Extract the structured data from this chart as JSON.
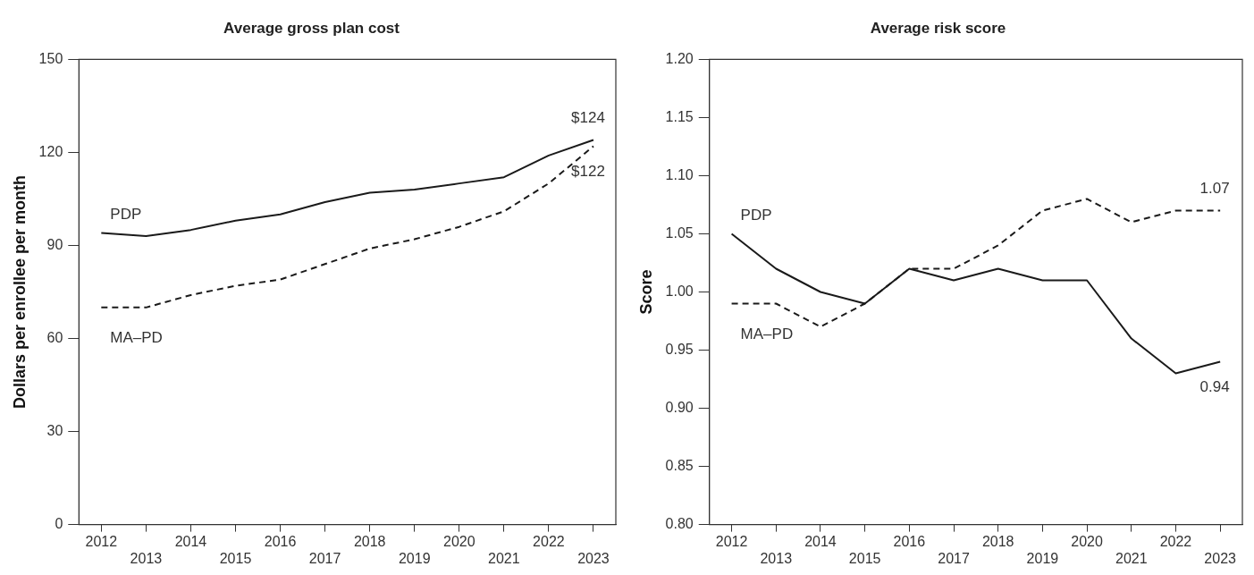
{
  "chart_data": [
    {
      "type": "line",
      "title": "Average gross plan cost",
      "ylabel": "Dollars per enrollee per month",
      "categories": [
        "2012",
        "2013",
        "2014",
        "2015",
        "2016",
        "2017",
        "2018",
        "2019",
        "2020",
        "2021",
        "2022",
        "2023"
      ],
      "series": [
        {
          "name": "PDP",
          "color": "#1a1a1a",
          "line_style": "solid",
          "values": [
            94,
            93,
            95,
            98,
            100,
            104,
            107,
            108,
            110,
            112,
            119,
            124
          ],
          "value_labels": [
            null,
            null,
            null,
            null,
            null,
            null,
            null,
            null,
            null,
            null,
            null,
            "$124"
          ]
        },
        {
          "name": "MA–PD",
          "color": "#1a1a1a",
          "line_style": "dashed",
          "values": [
            70,
            70,
            74,
            77,
            79,
            84,
            89,
            92,
            96,
            101,
            110,
            122
          ],
          "value_labels": [
            null,
            null,
            null,
            null,
            null,
            null,
            null,
            null,
            null,
            null,
            null,
            "$122"
          ]
        }
      ],
      "ylim": [
        0,
        150
      ],
      "yticks": [
        0,
        30,
        60,
        90,
        120,
        150
      ],
      "grid": false,
      "legend": false,
      "marker": "none"
    },
    {
      "type": "line",
      "title": "Average risk score",
      "ylabel": "Score",
      "categories": [
        "2012",
        "2013",
        "2014",
        "2015",
        "2016",
        "2017",
        "2018",
        "2019",
        "2020",
        "2021",
        "2022",
        "2023"
      ],
      "series": [
        {
          "name": "PDP",
          "color": "#1a1a1a",
          "line_style": "solid",
          "values": [
            1.05,
            1.02,
            1.0,
            0.99,
            1.02,
            1.01,
            1.02,
            1.01,
            1.01,
            0.96,
            0.93,
            0.94
          ],
          "value_labels": [
            null,
            null,
            null,
            null,
            null,
            null,
            null,
            null,
            null,
            null,
            null,
            "0.94"
          ]
        },
        {
          "name": "MA–PD",
          "color": "#1a1a1a",
          "line_style": "dashed",
          "values": [
            0.99,
            0.99,
            0.97,
            0.99,
            1.02,
            1.02,
            1.04,
            1.07,
            1.08,
            1.06,
            1.07,
            1.07
          ],
          "value_labels": [
            null,
            null,
            null,
            null,
            null,
            null,
            null,
            null,
            null,
            null,
            null,
            "1.07"
          ]
        }
      ],
      "ylim": [
        0.8,
        1.2
      ],
      "yticks": [
        {
          "value": 0.8,
          "label": "0.80"
        },
        {
          "value": 0.85,
          "label": "0.85"
        },
        {
          "value": 0.9,
          "label": "0.90"
        },
        {
          "value": 0.95,
          "label": "0.95"
        },
        {
          "value": 1.0,
          "label": "1.00"
        },
        {
          "value": 1.05,
          "label": "1.05"
        },
        {
          "value": 1.1,
          "label": "1.10"
        },
        {
          "value": 1.15,
          "label": "1.15"
        },
        {
          "value": 1.2,
          "label": "1.20"
        }
      ],
      "grid": false,
      "legend": false,
      "marker": "none"
    }
  ]
}
